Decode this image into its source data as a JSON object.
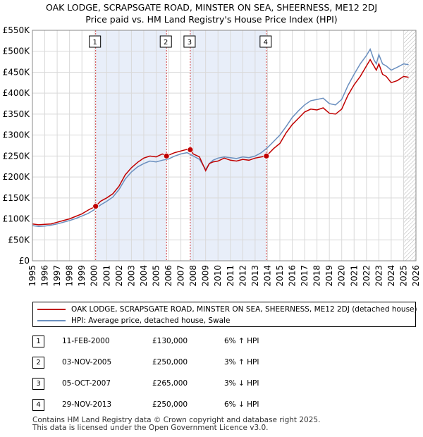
{
  "title_line1": "OAK LODGE, SCRAPSGATE ROAD, MINSTER ON SEA, SHEERNESS, ME12 2DJ",
  "title_line2": "Price paid vs. HM Land Registry's House Price Index (HPI)",
  "colors": {
    "property": "#c00000",
    "hpi": "#6a8fbf",
    "shade": "#e8eef9",
    "vline": "#d04040"
  },
  "chart_data": {
    "type": "line",
    "title": "OAK LODGE, SCRAPSGATE ROAD, MINSTER ON SEA, SHEERNESS, ME12 2DJ — Price paid vs. HM Land Registry's House Price Index (HPI)",
    "xlim": [
      1995,
      2026
    ],
    "ylim": [
      0,
      550000
    ],
    "y_ticks": [
      0,
      50000,
      100000,
      150000,
      200000,
      250000,
      300000,
      350000,
      400000,
      450000,
      500000,
      550000
    ],
    "y_tick_labels": [
      "£0",
      "£50K",
      "£100K",
      "£150K",
      "£200K",
      "£250K",
      "£300K",
      "£350K",
      "£400K",
      "£450K",
      "£500K",
      "£550K"
    ],
    "x_ticks": [
      1995,
      1996,
      1997,
      1998,
      1999,
      2000,
      2001,
      2002,
      2003,
      2004,
      2005,
      2006,
      2007,
      2008,
      2009,
      2010,
      2011,
      2012,
      2013,
      2014,
      2015,
      2016,
      2017,
      2018,
      2019,
      2020,
      2021,
      2022,
      2023,
      2024,
      2025,
      2026
    ],
    "shaded_ranges": [
      [
        2000.11,
        2005.84
      ],
      [
        2007.76,
        2013.91
      ]
    ],
    "hatched_from": 2025.0,
    "series": [
      {
        "name": "OAK LODGE, SCRAPSGATE ROAD, MINSTER ON SEA, SHEERNESS, ME12 2DJ (detached house)",
        "color": "#c00000",
        "x": [
          1995,
          1995.5,
          1996,
          1996.5,
          1997,
          1997.5,
          1998,
          1998.5,
          1999,
          1999.5,
          2000.11,
          2000.5,
          2001,
          2001.5,
          2002,
          2002.5,
          2003,
          2003.5,
          2004,
          2004.5,
          2005,
          2005.5,
          2005.84,
          2006,
          2006.5,
          2007,
          2007.5,
          2007.76,
          2008,
          2008.5,
          2009,
          2009.3,
          2009.6,
          2010,
          2010.5,
          2011,
          2011.5,
          2012,
          2012.5,
          2013,
          2013.5,
          2013.91,
          2014.5,
          2015,
          2015.5,
          2016,
          2016.5,
          2017,
          2017.5,
          2018,
          2018.5,
          2019,
          2019.5,
          2020,
          2020.5,
          2021,
          2021.5,
          2022,
          2022.3,
          2022.6,
          2022.8,
          2023,
          2023.3,
          2023.6,
          2024,
          2024.5,
          2025,
          2025.4
        ],
        "y": [
          88000,
          86000,
          87000,
          88000,
          92000,
          96000,
          100000,
          106000,
          112000,
          121000,
          130000,
          142000,
          150000,
          160000,
          178000,
          205000,
          222000,
          235000,
          245000,
          250000,
          248000,
          255000,
          250000,
          252000,
          258000,
          262000,
          266000,
          265000,
          255000,
          248000,
          215000,
          232000,
          236000,
          238000,
          245000,
          240000,
          238000,
          242000,
          240000,
          245000,
          248000,
          250000,
          268000,
          280000,
          305000,
          325000,
          340000,
          355000,
          362000,
          360000,
          365000,
          352000,
          350000,
          362000,
          395000,
          420000,
          440000,
          465000,
          480000,
          465000,
          455000,
          470000,
          445000,
          440000,
          425000,
          430000,
          440000,
          438000
        ]
      },
      {
        "name": "HPI: Average price, detached house, Swale",
        "color": "#6a8fbf",
        "x": [
          1995,
          1995.5,
          1996,
          1996.5,
          1997,
          1997.5,
          1998,
          1998.5,
          1999,
          1999.5,
          2000,
          2000.5,
          2001,
          2001.5,
          2002,
          2002.5,
          2003,
          2003.5,
          2004,
          2004.5,
          2005,
          2005.5,
          2006,
          2006.5,
          2007,
          2007.5,
          2008,
          2008.5,
          2009,
          2009.3,
          2009.6,
          2010,
          2010.5,
          2011,
          2011.5,
          2012,
          2012.5,
          2013,
          2013.5,
          2014,
          2014.5,
          2015,
          2015.5,
          2016,
          2016.5,
          2017,
          2017.5,
          2018,
          2018.5,
          2019,
          2019.5,
          2020,
          2020.5,
          2021,
          2021.5,
          2022,
          2022.3,
          2022.6,
          2022.8,
          2023,
          2023.3,
          2023.6,
          2024,
          2024.5,
          2025,
          2025.4
        ],
        "y": [
          84000,
          82000,
          83000,
          85000,
          88000,
          92000,
          96000,
          101000,
          107000,
          113000,
          122000,
          133000,
          142000,
          152000,
          170000,
          195000,
          212000,
          224000,
          232000,
          238000,
          236000,
          240000,
          243000,
          250000,
          255000,
          258000,
          250000,
          242000,
          218000,
          232000,
          240000,
          245000,
          248000,
          246000,
          244000,
          248000,
          246000,
          250000,
          258000,
          270000,
          285000,
          300000,
          320000,
          342000,
          358000,
          372000,
          382000,
          385000,
          388000,
          375000,
          372000,
          385000,
          418000,
          445000,
          470000,
          490000,
          505000,
          480000,
          470000,
          492000,
          470000,
          465000,
          455000,
          462000,
          470000,
          468000
        ]
      }
    ],
    "transactions": [
      {
        "num": "1",
        "x": 2000.11,
        "price": 130000
      },
      {
        "num": "2",
        "x": 2005.84,
        "price": 250000
      },
      {
        "num": "3",
        "x": 2007.76,
        "price": 265000
      },
      {
        "num": "4",
        "x": 2013.91,
        "price": 250000
      }
    ]
  },
  "legend": {
    "property_label": "OAK LODGE, SCRAPSGATE ROAD, MINSTER ON SEA, SHEERNESS, ME12 2DJ (detached house)",
    "hpi_label": "HPI: Average price, detached house, Swale"
  },
  "table": [
    {
      "num": "1",
      "date": "11-FEB-2000",
      "price": "£130,000",
      "hpi": "6% ↑ HPI"
    },
    {
      "num": "2",
      "date": "03-NOV-2005",
      "price": "£250,000",
      "hpi": "3% ↑ HPI"
    },
    {
      "num": "3",
      "date": "05-OCT-2007",
      "price": "£265,000",
      "hpi": "3% ↓ HPI"
    },
    {
      "num": "4",
      "date": "29-NOV-2013",
      "price": "£250,000",
      "hpi": "6% ↓ HPI"
    }
  ],
  "footer_line1": "Contains HM Land Registry data © Crown copyright and database right 2025.",
  "footer_line2": "This data is licensed under the Open Government Licence v3.0."
}
